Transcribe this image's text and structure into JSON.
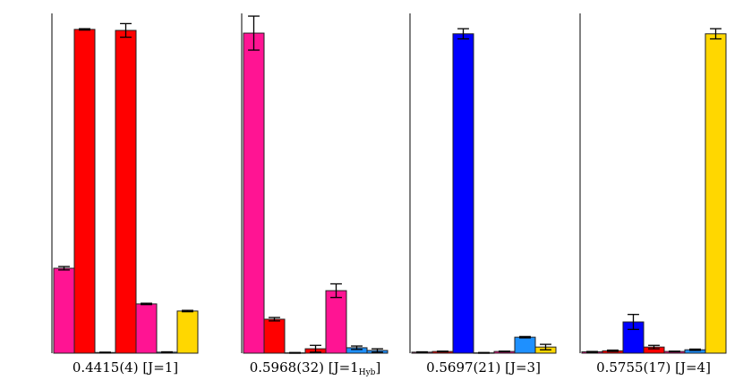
{
  "chart_data": [
    {
      "type": "bar",
      "title": "0.4415(4) [J=1]",
      "values": [
        0.25,
        0.953,
        0.002,
        0.95,
        0.145,
        0.003,
        0.124
      ],
      "errors": [
        0.005,
        0.002,
        0.001,
        0.02,
        0.002,
        0.001,
        0.002
      ],
      "colors": [
        "#ff1493",
        "#ff0000",
        "#ff0000",
        "#ff0000",
        "#ff1493",
        "#1e90ff",
        "#ffd700"
      ],
      "ylim": [
        0,
        1
      ]
    },
    {
      "type": "bar",
      "title": "0.5968(32) [J=1",
      "title_sub": "Hyb",
      "title_end": "]",
      "values": [
        0.942,
        0.1,
        0.001,
        0.013,
        0.184,
        0.016,
        0.008
      ],
      "errors": [
        0.05,
        0.005,
        0.001,
        0.01,
        0.02,
        0.005,
        0.005
      ],
      "colors": [
        "#ff1493",
        "#ff0000",
        "#ff0000",
        "#ff0000",
        "#ff1493",
        "#1e90ff",
        "#1e90ff"
      ],
      "ylim": [
        0,
        1
      ]
    },
    {
      "type": "bar",
      "title": "0.5697(21) [J=3]",
      "values": [
        0.003,
        0.005,
        0.94,
        0.001,
        0.005,
        0.047,
        0.018
      ],
      "errors": [
        0.001,
        0.001,
        0.015,
        0.001,
        0.001,
        0.002,
        0.008
      ],
      "colors": [
        "#ff1493",
        "#ff0000",
        "#0000ff",
        "#ff0000",
        "#ff1493",
        "#1e90ff",
        "#ffd700"
      ],
      "ylim": [
        0,
        1
      ]
    },
    {
      "type": "bar",
      "title": "0.5755(17) [J=4]",
      "values": [
        0.004,
        0.007,
        0.092,
        0.018,
        0.005,
        0.01,
        0.94
      ],
      "errors": [
        0.001,
        0.002,
        0.022,
        0.005,
        0.001,
        0.002,
        0.015
      ],
      "colors": [
        "#ff1493",
        "#ff0000",
        "#0000ff",
        "#ff0000",
        "#ff1493",
        "#1e90ff",
        "#ffd700"
      ],
      "ylim": [
        0,
        1
      ]
    }
  ]
}
